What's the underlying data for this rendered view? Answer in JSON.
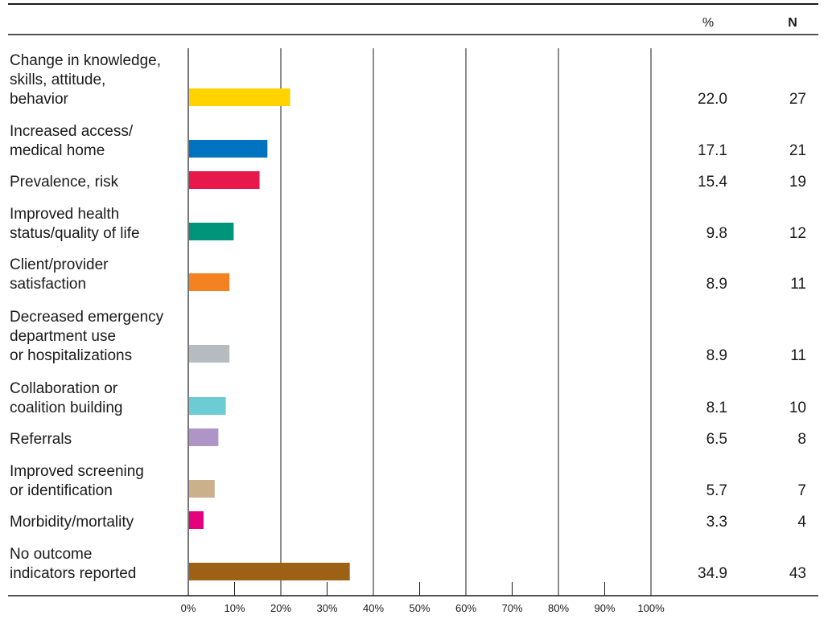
{
  "chart_data": {
    "type": "bar",
    "orientation": "horizontal",
    "table_headers": {
      "percent": "%",
      "count": "N"
    },
    "categories": [
      "Change in knowledge, skills, attitude, behavior",
      "Increased access/ medical home",
      "Prevalence, risk",
      "Improved health status/quality of life",
      "Client/provider satisfaction",
      "Decreased emergency department use or hospitalizations",
      "Collaboration or coalition building",
      "Referrals",
      "Improved screening or identification",
      "Morbidity/mortality",
      "No outcome indicators reported"
    ],
    "category_lines": [
      [
        "Change in knowledge,",
        "skills, attitude,",
        "behavior"
      ],
      [
        "Increased access/",
        "medical home"
      ],
      [
        "Prevalence, risk"
      ],
      [
        "Improved health",
        "status/quality of life"
      ],
      [
        "Client/provider",
        "satisfaction"
      ],
      [
        "Decreased emergency",
        "department use",
        "or hospitalizations"
      ],
      [
        "Collaboration or",
        "coalition building"
      ],
      [
        "Referrals"
      ],
      [
        "Improved screening",
        "or identification"
      ],
      [
        "Morbidity/mortality"
      ],
      [
        "No outcome",
        "indicators reported"
      ]
    ],
    "values": [
      22.0,
      17.1,
      15.4,
      9.8,
      8.9,
      8.9,
      8.1,
      6.5,
      5.7,
      3.3,
      34.9
    ],
    "value_labels": [
      "22.0",
      "17.1",
      "15.4",
      "9.8",
      "8.9",
      "8.9",
      "8.1",
      "6.5",
      "5.7",
      "3.3",
      "34.9"
    ],
    "counts": [
      "27",
      "21",
      "19",
      "12",
      "11",
      "11",
      "10",
      "8",
      "7",
      "4",
      "43"
    ],
    "colors": [
      "#FFD200",
      "#0073C0",
      "#E8184C",
      "#00957A",
      "#F58220",
      "#B6BBBF",
      "#6CCBD3",
      "#AE94C7",
      "#CBB08C",
      "#E5007E",
      "#9C6114"
    ],
    "xlim": [
      0,
      100
    ],
    "x_ticks": [
      "0%",
      "10%",
      "20%",
      "30%",
      "40%",
      "50%",
      "60%",
      "70%",
      "80%",
      "90%",
      "100%"
    ],
    "grid": "vertical lines every 20%",
    "legend": "none"
  }
}
